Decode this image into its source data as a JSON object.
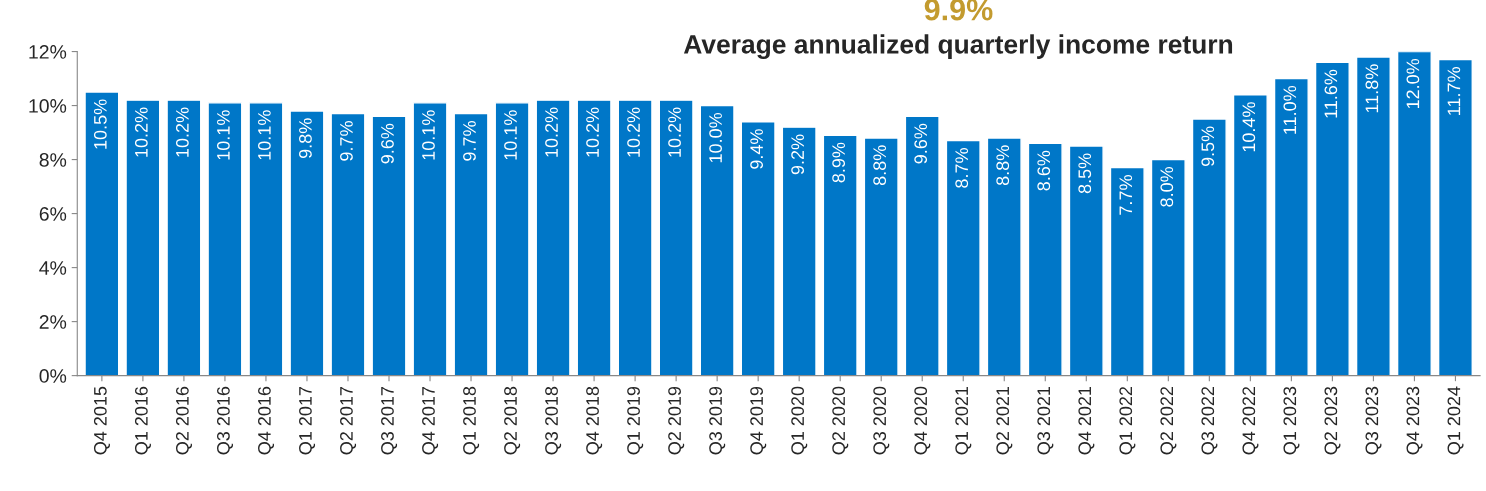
{
  "chart_data": {
    "type": "bar",
    "title": "Average annualized quarterly income return",
    "annotations": [
      "9.9%"
    ],
    "categories": [
      "Q4 2015",
      "Q1 2016",
      "Q2 2016",
      "Q3 2016",
      "Q4 2016",
      "Q1 2017",
      "Q2 2017",
      "Q3 2017",
      "Q4 2017",
      "Q1 2018",
      "Q2 2018",
      "Q3 2018",
      "Q4 2018",
      "Q1 2019",
      "Q2 2019",
      "Q3 2019",
      "Q4 2019",
      "Q1 2020",
      "Q2 2020",
      "Q3 2020",
      "Q4 2020",
      "Q1 2021",
      "Q2 2021",
      "Q3 2021",
      "Q4 2021",
      "Q1 2022",
      "Q2 2022",
      "Q3 2022",
      "Q4 2022",
      "Q1 2023",
      "Q2 2023",
      "Q3 2023",
      "Q4 2023",
      "Q1 2024"
    ],
    "values": [
      10.5,
      10.2,
      10.2,
      10.1,
      10.1,
      9.8,
      9.7,
      9.6,
      10.1,
      9.7,
      10.1,
      10.2,
      10.2,
      10.2,
      10.2,
      10.0,
      9.4,
      9.2,
      8.9,
      8.8,
      9.6,
      8.7,
      8.8,
      8.6,
      8.5,
      7.7,
      8.0,
      9.5,
      10.4,
      11.0,
      11.6,
      11.8,
      12.0,
      11.7
    ],
    "value_labels": [
      "10.5%",
      "10.2%",
      "10.2%",
      "10.1%",
      "10.1%",
      "9.8%",
      "9.7%",
      "9.6%",
      "10.1%",
      "9.7%",
      "10.1%",
      "10.2%",
      "10.2%",
      "10.2%",
      "10.2%",
      "10.0%",
      "9.4%",
      "9.2%",
      "8.9%",
      "8.8%",
      "9.6%",
      "8.7%",
      "8.8%",
      "8.6%",
      "8.5%",
      "7.7%",
      "8.0%",
      "9.5%",
      "10.4%",
      "11.0%",
      "11.6%",
      "11.8%",
      "12.0%",
      "11.7%"
    ],
    "color": "#0077c8",
    "ylim": [
      0,
      12
    ],
    "yticks": [
      {
        "value": 0,
        "label": "0%"
      },
      {
        "value": 2,
        "label": "2%"
      },
      {
        "value": 4,
        "label": "4%"
      },
      {
        "value": 6,
        "label": "6%"
      },
      {
        "value": 8,
        "label": "8%"
      },
      {
        "value": 10,
        "label": "10%"
      },
      {
        "value": 12,
        "label": "12%"
      }
    ],
    "grid": false,
    "legend": false
  }
}
